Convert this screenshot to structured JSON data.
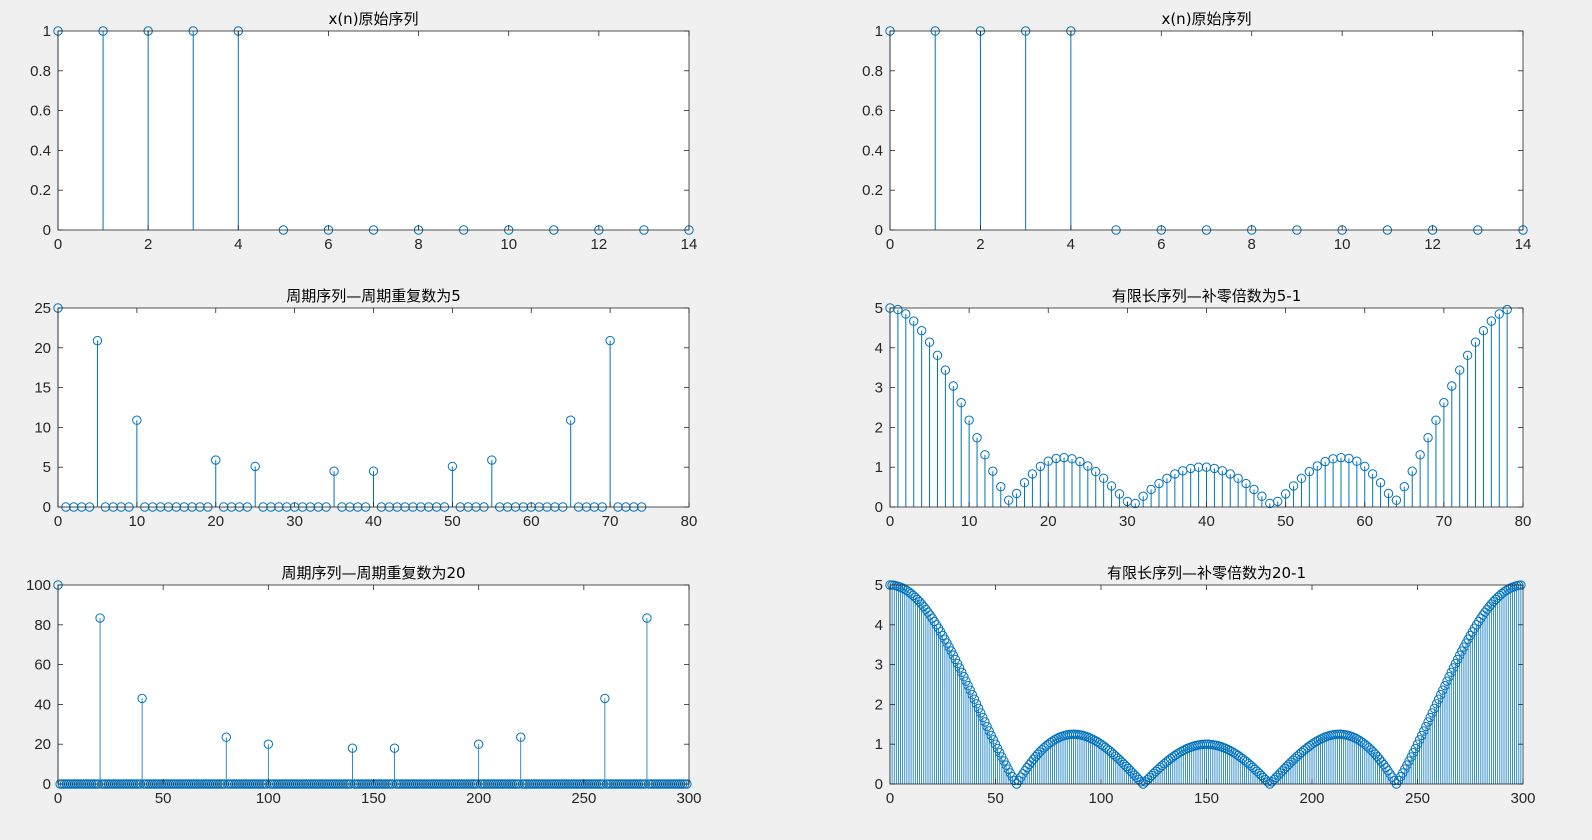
{
  "figure": {
    "background": "#f0f0f0",
    "axes_background": "#ffffff",
    "series_color": "#0072bd",
    "axis_color": "#262626"
  },
  "charts": [
    {
      "type": "stem",
      "title": "x(n)原始序列",
      "xlim": [
        0,
        14
      ],
      "ylim": [
        0,
        1
      ],
      "xticks": [
        0,
        2,
        4,
        6,
        8,
        10,
        12,
        14
      ],
      "xtick_labels": [
        "0",
        "2",
        "4",
        "6",
        "8",
        "10",
        "12",
        "14"
      ],
      "yticks": [
        0,
        0.2,
        0.4,
        0.6,
        0.8,
        1
      ],
      "ytick_labels": [
        "0",
        "0.2",
        "0.4",
        "0.6",
        "0.8",
        "1"
      ],
      "series": [
        {
          "x_start": 0,
          "x_step": 1,
          "values": [
            1,
            1,
            1,
            1,
            1,
            0,
            0,
            0,
            0,
            0,
            0,
            0,
            0,
            0,
            0
          ]
        }
      ]
    },
    {
      "type": "stem",
      "title": "x(n)原始序列",
      "xlim": [
        0,
        14
      ],
      "ylim": [
        0,
        1
      ],
      "xticks": [
        0,
        2,
        4,
        6,
        8,
        10,
        12,
        14
      ],
      "xtick_labels": [
        "0",
        "2",
        "4",
        "6",
        "8",
        "10",
        "12",
        "14"
      ],
      "yticks": [
        0,
        0.2,
        0.4,
        0.6,
        0.8,
        1
      ],
      "ytick_labels": [
        "0",
        "0.2",
        "0.4",
        "0.6",
        "0.8",
        "1"
      ],
      "series": [
        {
          "x_start": 0,
          "x_step": 1,
          "values": [
            1,
            1,
            1,
            1,
            1,
            0,
            0,
            0,
            0,
            0,
            0,
            0,
            0,
            0,
            0
          ]
        }
      ]
    },
    {
      "type": "stem",
      "title": "周期序列—周期重复数为5",
      "xlim": [
        0,
        80
      ],
      "ylim": [
        0,
        25
      ],
      "xticks": [
        0,
        10,
        20,
        30,
        40,
        50,
        60,
        70,
        80
      ],
      "xtick_labels": [
        "0",
        "10",
        "20",
        "30",
        "40",
        "50",
        "60",
        "70",
        "80"
      ],
      "yticks": [
        0,
        5,
        10,
        15,
        20,
        25
      ],
      "ytick_labels": [
        "0",
        "5",
        "10",
        "15",
        "20",
        "25"
      ],
      "series": [
        {
          "x_start": 0,
          "x_step": 1,
          "values": [
            25,
            0,
            0,
            0,
            0,
            20.9,
            0,
            0,
            0,
            0,
            10.9,
            0,
            0,
            0,
            0,
            0,
            0,
            0,
            0,
            0,
            5.9,
            0,
            0,
            0,
            0,
            5.1,
            0,
            0,
            0,
            0,
            0,
            0,
            0,
            0,
            0,
            4.5,
            0,
            0,
            0,
            0,
            4.5,
            0,
            0,
            0,
            0,
            0,
            0,
            0,
            0,
            0,
            5.1,
            0,
            0,
            0,
            0,
            5.9,
            0,
            0,
            0,
            0,
            0,
            0,
            0,
            0,
            0,
            10.9,
            0,
            0,
            0,
            0,
            20.9,
            0,
            0,
            0,
            0
          ]
        }
      ]
    },
    {
      "type": "stem",
      "title": "有限长序列—补零倍数为5-1",
      "xlim": [
        0,
        80
      ],
      "ylim": [
        0,
        5
      ],
      "xticks": [
        0,
        10,
        20,
        30,
        40,
        50,
        60,
        70,
        80
      ],
      "xtick_labels": [
        "0",
        "10",
        "20",
        "30",
        "40",
        "50",
        "60",
        "70",
        "80"
      ],
      "yticks": [
        0,
        1,
        2,
        3,
        4,
        5
      ],
      "ytick_labels": [
        "0",
        "1",
        "2",
        "3",
        "4",
        "5"
      ],
      "series": [
        {
          "x_start": 0,
          "x_step": 1,
          "values": [
            5,
            4.96,
            4.85,
            4.67,
            4.43,
            4.14,
            3.81,
            3.44,
            3.04,
            2.62,
            2.18,
            1.74,
            1.31,
            0.9,
            0.51,
            0.17,
            0.34,
            0.61,
            0.83,
            1.02,
            1.15,
            1.22,
            1.24,
            1.21,
            1.14,
            1.03,
            0.89,
            0.72,
            0.53,
            0.33,
            0.14,
            0.09,
            0.27,
            0.44,
            0.59,
            0.72,
            0.83,
            0.91,
            0.97,
            1,
            1,
            0.97,
            0.91,
            0.83,
            0.72,
            0.59,
            0.44,
            0.27,
            0.09,
            0.14,
            0.33,
            0.53,
            0.72,
            0.89,
            1.03,
            1.14,
            1.21,
            1.24,
            1.22,
            1.15,
            1.02,
            0.83,
            0.61,
            0.34,
            0.17,
            0.51,
            0.9,
            1.31,
            1.74,
            2.18,
            2.62,
            3.04,
            3.44,
            3.81,
            4.14,
            4.43,
            4.67,
            4.85,
            4.96
          ]
        }
      ]
    },
    {
      "type": "stem",
      "title": "周期序列—周期重复数为20",
      "xlim": [
        0,
        300
      ],
      "ylim": [
        0,
        100
      ],
      "xticks": [
        0,
        50,
        100,
        150,
        200,
        250,
        300
      ],
      "xtick_labels": [
        "0",
        "50",
        "100",
        "150",
        "200",
        "250",
        "300"
      ],
      "yticks": [
        0,
        20,
        40,
        60,
        80,
        100
      ],
      "ytick_labels": [
        "0",
        "20",
        "40",
        "60",
        "80",
        "100"
      ],
      "series": [
        {
          "x_start": 0,
          "x_step": 1,
          "length": 300,
          "baseline": 0,
          "spikes": [
            {
              "x": 0,
              "y": 100
            },
            {
              "x": 20,
              "y": 83.4
            },
            {
              "x": 40,
              "y": 43
            },
            {
              "x": 80,
              "y": 23.5
            },
            {
              "x": 100,
              "y": 20
            },
            {
              "x": 140,
              "y": 18
            },
            {
              "x": 160,
              "y": 18
            },
            {
              "x": 200,
              "y": 20
            },
            {
              "x": 220,
              "y": 23.5
            },
            {
              "x": 260,
              "y": 43
            },
            {
              "x": 280,
              "y": 83.4
            }
          ]
        }
      ]
    },
    {
      "type": "stem",
      "title": "有限长序列—补零倍数为20-1",
      "xlim": [
        0,
        300
      ],
      "ylim": [
        0,
        5
      ],
      "xticks": [
        0,
        50,
        100,
        150,
        200,
        250,
        300
      ],
      "xtick_labels": [
        "0",
        "50",
        "100",
        "150",
        "200",
        "250",
        "300"
      ],
      "yticks": [
        0,
        1,
        2,
        3,
        4,
        5
      ],
      "ytick_labels": [
        "0",
        "1",
        "2",
        "3",
        "4",
        "5"
      ],
      "series": [
        {
          "x_start": 0,
          "x_step": 1,
          "length": 300,
          "generator": "|sin(5·πk/300) / sin(πk/300)|",
          "peak": 5,
          "nulls": [
            60,
            120,
            180,
            240
          ]
        }
      ]
    }
  ]
}
